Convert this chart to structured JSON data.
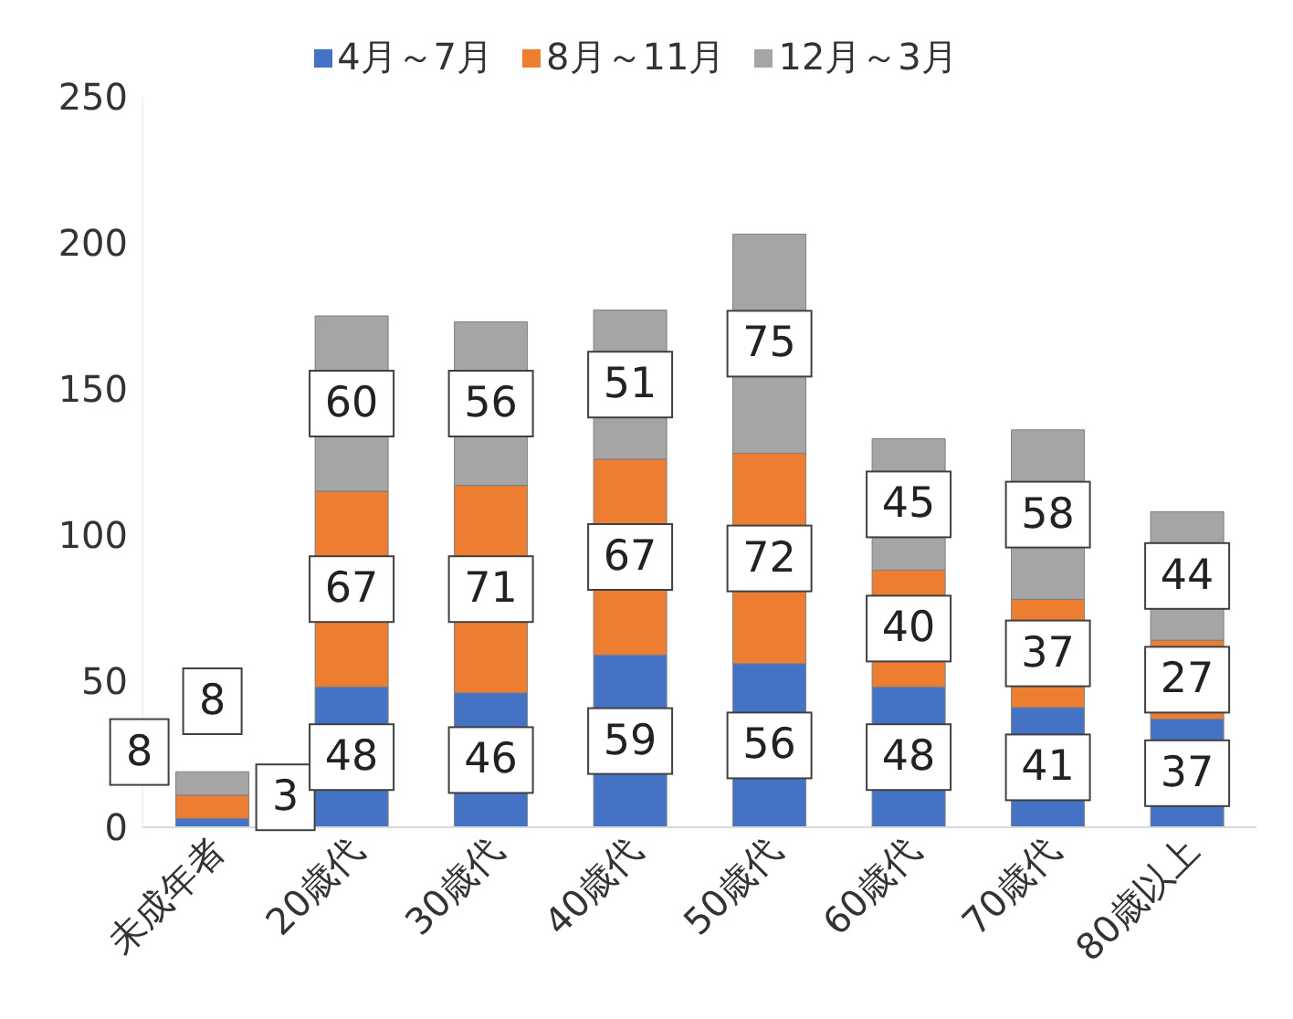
{
  "chart_data": {
    "type": "bar",
    "stacked": true,
    "categories": [
      "未成年者",
      "20歳代",
      "30歳代",
      "40歳代",
      "50歳代",
      "60歳代",
      "70歳代",
      "80歳以上"
    ],
    "series": [
      {
        "name": "4月～7月",
        "color": "#4472c4",
        "values": [
          3,
          48,
          46,
          59,
          56,
          48,
          41,
          37
        ]
      },
      {
        "name": "8月～11月",
        "color": "#ed7d31",
        "values": [
          8,
          67,
          71,
          67,
          72,
          40,
          37,
          27
        ]
      },
      {
        "name": "12月～3月",
        "color": "#a5a5a5",
        "values": [
          8,
          60,
          56,
          51,
          75,
          45,
          58,
          44
        ]
      }
    ],
    "ylim": [
      0,
      250
    ],
    "yticks": [
      0,
      50,
      100,
      150,
      200,
      250
    ],
    "grid": false,
    "legend": "top",
    "data_labels": true
  }
}
